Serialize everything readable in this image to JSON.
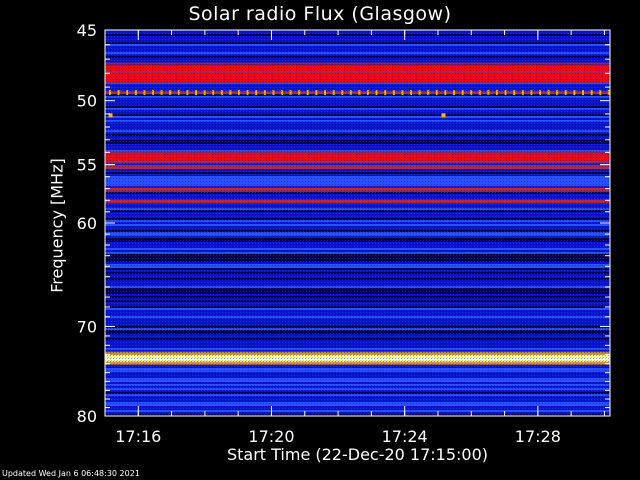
{
  "chart_data": {
    "type": "heatmap",
    "title": "Solar radio Flux (Glasgow)",
    "xlabel": "Start Time (22-Dec-20 17:15:00)",
    "ylabel": "Frequency [MHz]",
    "x_range": [
      "17:15:00",
      "17:30:10"
    ],
    "x_ticks": [
      "17:16",
      "17:20",
      "17:24",
      "17:28"
    ],
    "ylim": [
      45,
      80
    ],
    "y_scale": "log",
    "y_ticks": [
      45,
      50,
      55,
      60,
      70,
      80
    ],
    "colormap": [
      "#00004a",
      "#0a14c8",
      "#2850ff",
      "#b4283c",
      "#ff0000",
      "#ffb400",
      "#ffff80"
    ],
    "background_level": "blue",
    "bands": [
      {
        "mhz": 47.7,
        "intensity": "high"
      },
      {
        "mhz": 48.3,
        "intensity": "high"
      },
      {
        "mhz": 49.4,
        "intensity": "periodic bursts"
      },
      {
        "mhz": 54.4,
        "intensity": "high"
      },
      {
        "mhz": 55.2,
        "intensity": "medium"
      },
      {
        "mhz": 57.1,
        "intensity": "medium"
      },
      {
        "mhz": 58.1,
        "intensity": "medium"
      },
      {
        "mhz": 73.4,
        "intensity": "saturated"
      }
    ],
    "spots": [
      {
        "time": "17:15:10",
        "mhz": 51.1
      },
      {
        "time": "17:25:10",
        "mhz": 51.1
      }
    ]
  },
  "footer": "Updated Wed Jan  6 06:48:30 2021"
}
